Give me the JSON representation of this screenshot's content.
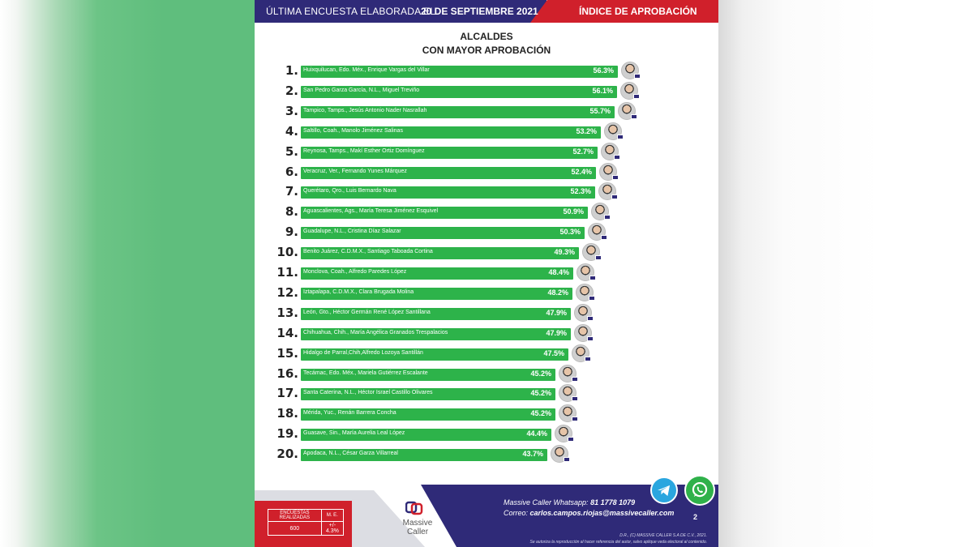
{
  "header": {
    "left_text": "ÚLTIMA ENCUESTA ELABORADA EL",
    "date": "20 DE SEPTIEMBRE 2021",
    "right_text": "ÍNDICE DE APROBACIÓN"
  },
  "chart_data": {
    "type": "bar",
    "orientation": "horizontal",
    "title": "ALCALDES",
    "subtitle": "CON MAYOR APROBACIÓN",
    "xlim": [
      0,
      60
    ],
    "grid": false,
    "categories": [
      "Huixquilucan, Edo. Méx., Enrique Vargas del Villar",
      "San Pedro Garza García, N.L., Miguel Treviño",
      "Tampico, Tamps., Jesús Antonio Nader Nasrallah",
      "Saltillo, Coah., Manolo Jiménez Salinas",
      "Reynosa, Tamps., Makí Esther Ortiz Domínguez",
      "Veracruz, Ver., Fernando Yunes Márquez",
      "Querétaro, Qro., Luis Bernardo Nava",
      "Aguascalientes, Ags., María Teresa Jiménez Esquivel",
      "Guadalupe, N.L., Cristina Díaz Salazar",
      "Benito Juárez, C.D.M.X., Santiago Taboada Cortina",
      "Monclova, Coah., Alfredo Paredes López",
      "Iztapalapa, C.D.M.X., Clara Brugada Molina",
      "León, Gto., Héctor Germán René López Santillana",
      "Chihuahua, Chih., María Angélica Granados Trespalacios",
      "Hidalgo de Parral,Chih,Alfredo Lozoya Santillán",
      "Tecámac, Edo. Méx., Mariela Gutiérrez Escalante",
      "Santa Caterina, N.L., Héctor Israel Castillo Olivares",
      "Mérida, Yuc., Renán Barrera Concha",
      "Guasave, Sin., María Aurelia Leal López",
      "Apodaca, N.L., César Garza Villarreal"
    ],
    "ranks": [
      "1.",
      "2.",
      "3.",
      "4.",
      "5.",
      "6.",
      "7.",
      "8.",
      "9.",
      "10.",
      "11.",
      "12.",
      "13.",
      "14.",
      "15.",
      "16.",
      "17.",
      "18.",
      "19.",
      "20."
    ],
    "values": [
      56.3,
      56.1,
      55.7,
      53.2,
      52.7,
      52.4,
      52.3,
      50.9,
      50.3,
      49.3,
      48.4,
      48.2,
      47.9,
      47.9,
      47.5,
      45.2,
      45.2,
      45.2,
      44.4,
      43.7
    ],
    "value_labels": [
      "56.3%",
      "56.1%",
      "55.7%",
      "53.2%",
      "52.7%",
      "52.4%",
      "52.3%",
      "50.9%",
      "50.3%",
      "49.3%",
      "48.4%",
      "48.2%",
      "47.9%",
      "47.9%",
      "47.5%",
      "45.2%",
      "45.2%",
      "45.2%",
      "44.4%",
      "43.7%"
    ]
  },
  "colors": {
    "bar": "#2db34a",
    "header_blue": "#2f2a78",
    "header_red": "#d0202b",
    "side_green": "#5fbe7d"
  },
  "footer": {
    "survey_label": "ENCUESTAS REALIZADAS",
    "survey_value": "600",
    "error_label": "M. E.",
    "error_value": "+/- 4.3%",
    "brand": "Massive Caller",
    "whatsapp_label": "Massive Caller Whatsapp:",
    "whatsapp_number": "81 1778 1079",
    "email_label": "Correo:",
    "email": "carlos.campos.riojas@massivecaller.com",
    "page_number": "2",
    "legal_1": "D.R., (C) MASSIVE CALLER S.A DE C.V., 2021.",
    "legal_2": "Se autoriza la reproducción al hacer referencia del autor, salvo aplique veda electoral al contenido.",
    "icons": [
      "telegram-icon",
      "whatsapp-icon"
    ]
  }
}
